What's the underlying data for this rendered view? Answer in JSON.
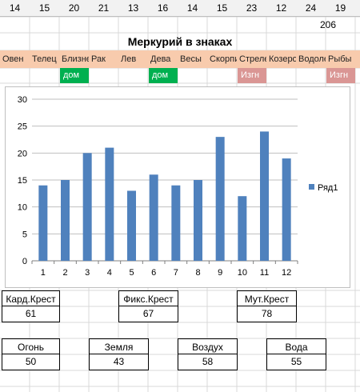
{
  "top_numbers": [
    "14",
    "15",
    "20",
    "21",
    "13",
    "16",
    "14",
    "15",
    "23",
    "12",
    "24",
    "19"
  ],
  "total": "206",
  "title": "Меркурий в знаках",
  "signs": [
    "Овен",
    "Телец",
    "Близнецы",
    "Рак",
    "Лев",
    "Дева",
    "Весы",
    "Скорпион",
    "Стрелец",
    "Козерог",
    "Водолей",
    "Рыбы"
  ],
  "dom_tags": [
    {
      "index": 2,
      "text": "дом"
    },
    {
      "index": 5,
      "text": "дом"
    }
  ],
  "izgn_tags": [
    {
      "index": 8,
      "text": "Изгн"
    },
    {
      "index": 11,
      "text": "Изгн"
    }
  ],
  "colors": {
    "header_bg": "#f2f2f2",
    "sign_bg": "#f8cbad",
    "dom_bg": "#00b050",
    "izgn_bg": "#da9694",
    "bar": "#4f81bd"
  },
  "chart_data": {
    "type": "bar",
    "categories": [
      "1",
      "2",
      "3",
      "4",
      "5",
      "6",
      "7",
      "8",
      "9",
      "10",
      "11",
      "12"
    ],
    "series": [
      {
        "name": "Ряд1",
        "values": [
          14,
          15,
          20,
          21,
          13,
          16,
          14,
          15,
          23,
          12,
          24,
          19
        ]
      }
    ],
    "ylim": [
      0,
      30
    ],
    "yticks": [
      "0",
      "5",
      "10",
      "15",
      "20",
      "25",
      "30"
    ],
    "grid": true,
    "legend": "right"
  },
  "crosses": [
    {
      "label": "Кард.Крест",
      "value": "61"
    },
    {
      "label": "Фикс.Крест",
      "value": "67"
    },
    {
      "label": "Мут.Крест",
      "value": "78"
    }
  ],
  "elements": [
    {
      "label": "Огонь",
      "value": "50"
    },
    {
      "label": "Земля",
      "value": "43"
    },
    {
      "label": "Воздух",
      "value": "58"
    },
    {
      "label": "Вода",
      "value": "55"
    }
  ]
}
